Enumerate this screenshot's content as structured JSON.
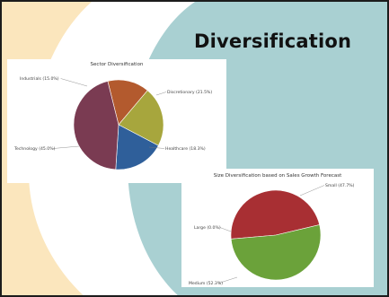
{
  "slide": {
    "title": "Diversification",
    "colors": {
      "background_teal": "#a9d0d2",
      "curve_white": "#ffffff",
      "curve_cream": "#fbe6bd"
    }
  },
  "chart_data": [
    {
      "type": "pie",
      "title": "Sector Diversification",
      "slices": [
        {
          "label": "Industrials (15.0%)",
          "value": 15.0,
          "color": "#b35a2e"
        },
        {
          "label": "Discretionary (21.5%)",
          "value": 21.5,
          "color": "#a7a63d"
        },
        {
          "label": "Healthcare (18.3%)",
          "value": 18.3,
          "color": "#2f5f9a"
        },
        {
          "label": "Technology (45.0%)",
          "value": 45.0,
          "color": "#7a3b52"
        }
      ]
    },
    {
      "type": "pie",
      "title": "Size Diversification based on Sales Growth Forecast",
      "slices": [
        {
          "label": "Small (47.7%)",
          "value": 47.7,
          "color": "#a82f33"
        },
        {
          "label": "Large (0.0%)",
          "value": 0.0,
          "color": "#8c8c3a"
        },
        {
          "label": "Medium (52.3%)",
          "value": 52.3,
          "color": "#6ba23a"
        }
      ]
    }
  ]
}
